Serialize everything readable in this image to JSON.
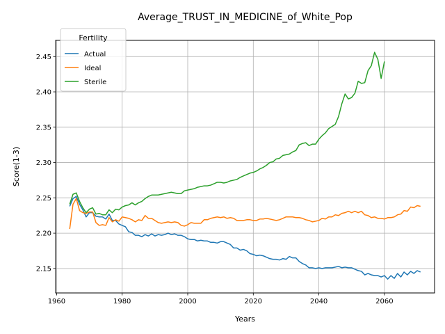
{
  "chart_data": {
    "type": "line",
    "title": "Average_TRUST_IN_MEDICINE_of_White_Pop",
    "xlabel": "Years",
    "ylabel": "Score(1-3)",
    "xlim": [
      1959.7,
      2075.3
    ],
    "ylim": [
      2.1154,
      2.4729
    ],
    "xticks": [
      1960,
      1980,
      2000,
      2020,
      2040,
      2060
    ],
    "yticks": [
      2.15,
      2.2,
      2.25,
      2.3,
      2.35,
      2.4,
      2.45
    ],
    "xtick_labels": [
      "1960",
      "1980",
      "2000",
      "2020",
      "2040",
      "2060"
    ],
    "ytick_labels": [
      "2.15",
      "2.20",
      "2.25",
      "2.30",
      "2.35",
      "2.40",
      "2.45"
    ],
    "grid": true,
    "legend": {
      "title": "Fertility",
      "position": "top-left"
    },
    "series": [
      {
        "name": "Actual",
        "color": "#1f77b4",
        "x_start": 1964,
        "values": [
          2.238,
          2.249,
          2.252,
          2.241,
          2.233,
          2.223,
          2.229,
          2.229,
          2.224,
          2.223,
          2.223,
          2.22,
          2.227,
          2.218,
          2.218,
          2.213,
          2.211,
          2.209,
          2.202,
          2.201,
          2.197,
          2.197,
          2.195,
          2.198,
          2.196,
          2.199,
          2.196,
          2.198,
          2.197,
          2.198,
          2.2,
          2.198,
          2.199,
          2.197,
          2.197,
          2.195,
          2.192,
          2.191,
          2.191,
          2.189,
          2.19,
          2.189,
          2.189,
          2.187,
          2.187,
          2.186,
          2.188,
          2.188,
          2.186,
          2.184,
          2.179,
          2.179,
          2.176,
          2.177,
          2.175,
          2.171,
          2.17,
          2.168,
          2.169,
          2.168,
          2.166,
          2.164,
          2.163,
          2.163,
          2.162,
          2.164,
          2.163,
          2.167,
          2.165,
          2.165,
          2.16,
          2.157,
          2.155,
          2.151,
          2.151,
          2.15,
          2.151,
          2.15,
          2.151,
          2.151,
          2.151,
          2.152,
          2.153,
          2.151,
          2.152,
          2.151,
          2.151,
          2.149,
          2.147,
          2.146,
          2.141,
          2.143,
          2.141,
          2.14,
          2.14,
          2.138,
          2.14,
          2.135,
          2.14,
          2.136,
          2.143,
          2.138,
          2.145,
          2.141,
          2.146,
          2.143,
          2.147,
          2.145
        ]
      },
      {
        "name": "Ideal",
        "color": "#ff7f0e",
        "x_start": 1964,
        "values": [
          2.206,
          2.241,
          2.249,
          2.232,
          2.229,
          2.228,
          2.23,
          2.23,
          2.215,
          2.211,
          2.212,
          2.211,
          2.222,
          2.216,
          2.219,
          2.217,
          2.223,
          2.222,
          2.221,
          2.219,
          2.216,
          2.219,
          2.218,
          2.225,
          2.221,
          2.221,
          2.218,
          2.215,
          2.214,
          2.215,
          2.216,
          2.215,
          2.216,
          2.215,
          2.211,
          2.21,
          2.212,
          2.215,
          2.214,
          2.214,
          2.214,
          2.219,
          2.219,
          2.221,
          2.222,
          2.223,
          2.222,
          2.223,
          2.221,
          2.222,
          2.221,
          2.218,
          2.218,
          2.218,
          2.219,
          2.219,
          2.218,
          2.218,
          2.22,
          2.22,
          2.221,
          2.22,
          2.219,
          2.218,
          2.219,
          2.221,
          2.223,
          2.223,
          2.223,
          2.222,
          2.222,
          2.221,
          2.219,
          2.218,
          2.216,
          2.217,
          2.218,
          2.221,
          2.22,
          2.223,
          2.223,
          2.226,
          2.225,
          2.228,
          2.229,
          2.231,
          2.229,
          2.231,
          2.229,
          2.231,
          2.226,
          2.225,
          2.222,
          2.223,
          2.221,
          2.221,
          2.22,
          2.222,
          2.222,
          2.223,
          2.226,
          2.227,
          2.232,
          2.231,
          2.237,
          2.236,
          2.239,
          2.238
        ]
      },
      {
        "name": "Sterile",
        "color": "#2ca02c",
        "x_start": 1964,
        "values": [
          2.241,
          2.255,
          2.257,
          2.245,
          2.236,
          2.229,
          2.234,
          2.236,
          2.227,
          2.228,
          2.226,
          2.226,
          2.233,
          2.229,
          2.234,
          2.233,
          2.237,
          2.239,
          2.24,
          2.243,
          2.24,
          2.243,
          2.245,
          2.249,
          2.252,
          2.254,
          2.254,
          2.254,
          2.255,
          2.256,
          2.257,
          2.258,
          2.257,
          2.256,
          2.256,
          2.26,
          2.261,
          2.262,
          2.263,
          2.265,
          2.266,
          2.267,
          2.267,
          2.268,
          2.27,
          2.272,
          2.272,
          2.271,
          2.272,
          2.274,
          2.275,
          2.276,
          2.279,
          2.281,
          2.283,
          2.285,
          2.286,
          2.288,
          2.291,
          2.293,
          2.296,
          2.3,
          2.301,
          2.305,
          2.306,
          2.31,
          2.311,
          2.312,
          2.315,
          2.317,
          2.325,
          2.327,
          2.328,
          2.324,
          2.326,
          2.326,
          2.333,
          2.338,
          2.342,
          2.348,
          2.351,
          2.354,
          2.365,
          2.383,
          2.397,
          2.39,
          2.392,
          2.398,
          2.415,
          2.412,
          2.413,
          2.43,
          2.437,
          2.456,
          2.446,
          2.419,
          2.443
        ]
      }
    ]
  }
}
